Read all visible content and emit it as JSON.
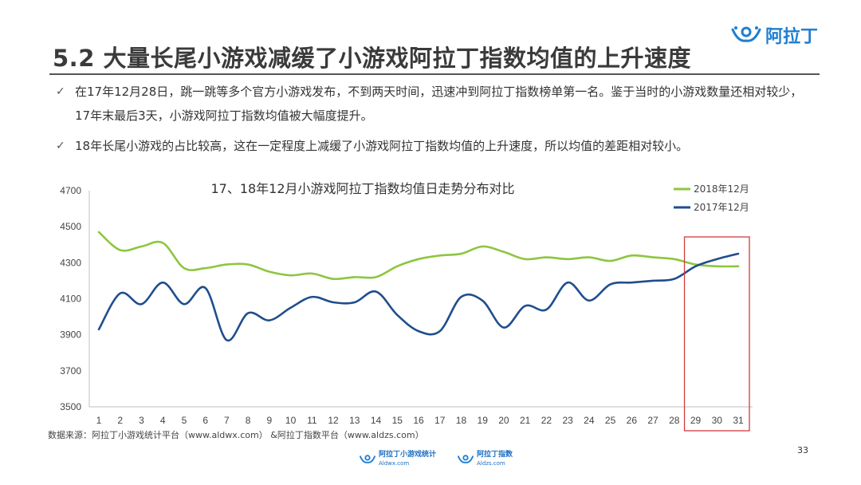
{
  "header": {
    "title": "5.2 大量长尾小游戏减缓了小游戏阿拉丁指数均值的上升速度",
    "logo_text": "阿拉丁"
  },
  "bullets": [
    {
      "icon": "check-icon",
      "text": "在17年12月28日，跳一跳等多个官方小游戏发布，不到两天时间，迅速冲到阿拉丁指数榜单第一名。鉴于当时的小游戏数量还相对较少，17年末最后3天，小游戏阿拉丁指数均值被大幅度提升。"
    },
    {
      "icon": "check-icon",
      "text": "18年长尾小游戏的占比较高，这在一定程度上减缓了小游戏阿拉丁指数均值的上升速度，所以均值的差距相对较小。"
    }
  ],
  "chart_data": {
    "type": "line",
    "title": "17、18年12月小游戏阿拉丁指数均值日走势分布对比",
    "x": [
      1,
      2,
      3,
      4,
      5,
      6,
      7,
      8,
      9,
      10,
      11,
      12,
      13,
      14,
      15,
      16,
      17,
      18,
      19,
      20,
      21,
      22,
      23,
      24,
      25,
      26,
      27,
      28,
      29,
      30,
      31
    ],
    "ylim": [
      3500,
      4700
    ],
    "yticks": [
      3500,
      3700,
      3900,
      4100,
      4300,
      4500,
      4700
    ],
    "grid": false,
    "legend_position": "top-right",
    "series": [
      {
        "name": "2018年12月",
        "color": "#8dc63f",
        "values": [
          4470,
          4370,
          4390,
          4410,
          4270,
          4270,
          4290,
          4290,
          4250,
          4230,
          4240,
          4210,
          4220,
          4220,
          4280,
          4320,
          4340,
          4350,
          4390,
          4360,
          4320,
          4330,
          4320,
          4330,
          4310,
          4340,
          4330,
          4320,
          4290,
          4280,
          4280
        ]
      },
      {
        "name": "2017年12月",
        "color": "#1f4e8c",
        "values": [
          3930,
          4130,
          4070,
          4190,
          4070,
          4160,
          3870,
          4020,
          3980,
          4050,
          4110,
          4080,
          4080,
          4140,
          4010,
          3920,
          3920,
          4110,
          4090,
          3940,
          4060,
          4040,
          4190,
          4090,
          4180,
          4190,
          4200,
          4210,
          4280,
          4320,
          4350
        ]
      }
    ],
    "highlight": {
      "from": 29,
      "to": 31,
      "color": "#d23c3c"
    }
  },
  "footer": {
    "source": "数据来源：阿拉丁小游戏统计平台（www.aldwx.com） &阿拉丁指数平台（www.aldzs.com）",
    "page_number": "33",
    "logos": [
      {
        "name": "阿拉丁小游戏统计",
        "url": "Aldwx.com"
      },
      {
        "name": "阿拉丁指数",
        "url": "Aldzs.com"
      }
    ]
  },
  "colors": {
    "brand": "#1e7fd1",
    "title": "#3a3a3a",
    "series_2018": "#8dc63f",
    "series_2017": "#1f4e8c",
    "highlight_box": "#d23c3c"
  }
}
